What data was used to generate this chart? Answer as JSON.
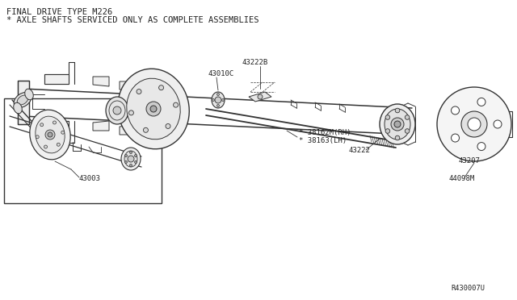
{
  "background_color": "#ffffff",
  "title_line1": "FINAL DRIVE TYPE M226",
  "title_line2": "* AXLE SHAFTS SERVICED ONLY AS COMPLETE ASSEMBLIES",
  "labels": {
    "38162M_RH": "* 38162M(RH)",
    "38163_LH": "* 38163(LH)",
    "43222": "43222",
    "43010C": "43010C",
    "43222B": "43222B",
    "43003": "43003",
    "43207": "43207",
    "44098M": "44098M",
    "R430007U": "R430007U"
  },
  "figsize": [
    6.4,
    3.72
  ],
  "dpi": 100,
  "line_color": "#333333",
  "text_color": "#222222"
}
